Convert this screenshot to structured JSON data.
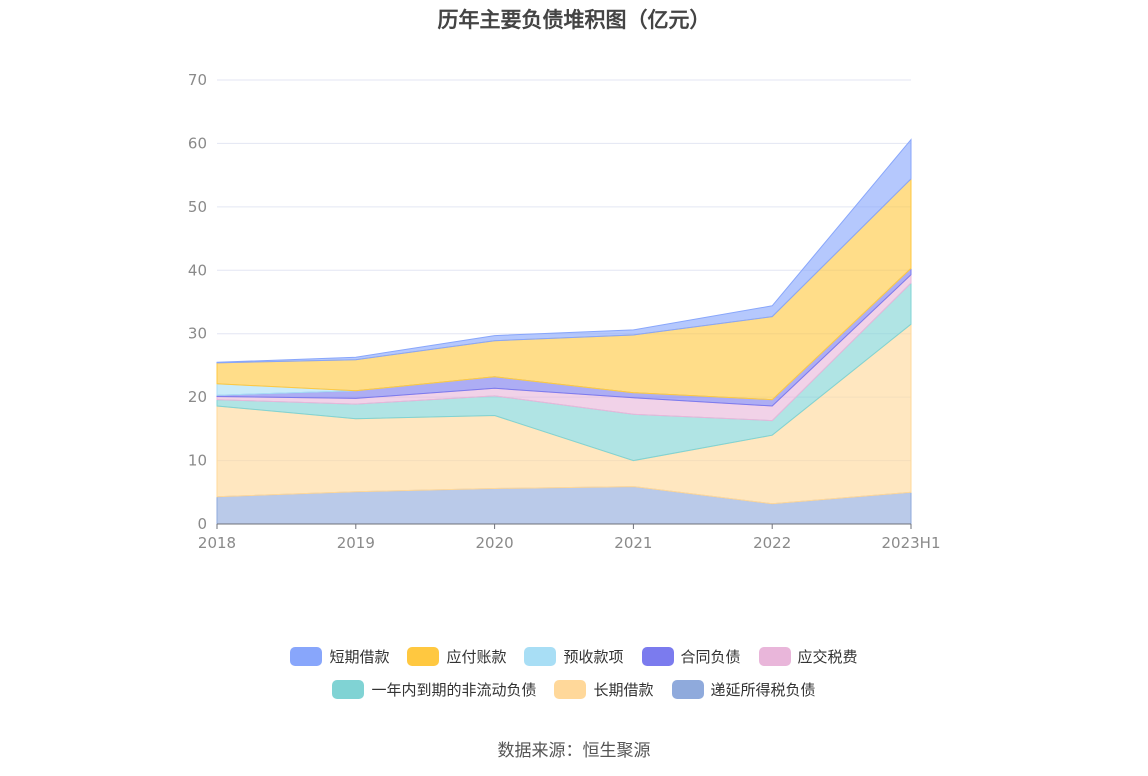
{
  "title": "历年主要负债堆积图（亿元）",
  "source": "数据来源：恒生聚源",
  "chart_data": {
    "type": "area",
    "stacked": true,
    "categories": [
      "2018",
      "2019",
      "2020",
      "2021",
      "2022",
      "2023H1"
    ],
    "ylim": [
      0,
      70
    ],
    "yticks": [
      0,
      10,
      20,
      30,
      40,
      50,
      60,
      70
    ],
    "grid": true,
    "legend_position": "bottom",
    "series": [
      {
        "name": "递延所得税负债",
        "color": "#8faadc",
        "values": [
          4.3,
          5.1,
          5.6,
          5.9,
          3.2,
          5.0
        ]
      },
      {
        "name": "长期借款",
        "color": "#ffd89a",
        "values": [
          14.3,
          11.5,
          11.5,
          4.1,
          10.8,
          26.5
        ]
      },
      {
        "name": "一年内到期的非流动负债",
        "color": "#80d3d4",
        "values": [
          1.0,
          2.3,
          3.1,
          7.3,
          2.3,
          6.5
        ]
      },
      {
        "name": "应交税费",
        "color": "#e9b6da",
        "values": [
          0.5,
          0.9,
          1.2,
          2.6,
          2.3,
          1.3
        ]
      },
      {
        "name": "合同负债",
        "color": "#7b7bee",
        "values": [
          0.2,
          1.2,
          1.8,
          0.8,
          1.0,
          1.0
        ]
      },
      {
        "name": "预收款项",
        "color": "#a8def5",
        "values": [
          1.8,
          0.0,
          0.0,
          0.0,
          0.0,
          0.0
        ]
      },
      {
        "name": "应付账款",
        "color": "#ffc840",
        "values": [
          3.3,
          4.9,
          5.7,
          9.1,
          13.1,
          14.1
        ]
      },
      {
        "name": "短期借款",
        "color": "#88a6fb",
        "values": [
          0.1,
          0.4,
          0.8,
          0.8,
          1.7,
          6.2
        ]
      }
    ],
    "legend_order": [
      "短期借款",
      "应付账款",
      "预收款项",
      "合同负债",
      "应交税费",
      "一年内到期的非流动负债",
      "长期借款",
      "递延所得税负债"
    ]
  }
}
